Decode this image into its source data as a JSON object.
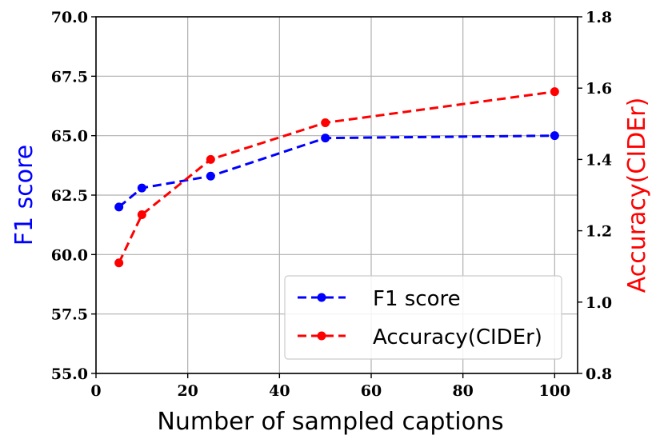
{
  "chart_data": {
    "type": "line",
    "xlabel": "Number of sampled captions",
    "ylabel_left": "F1 score",
    "ylabel_right": "Accuracy(CIDEr)",
    "xlim": [
      0,
      105
    ],
    "ylim_left": [
      55.0,
      70.0
    ],
    "ylim_right": [
      0.8,
      1.8
    ],
    "x_ticks": [
      0,
      20,
      40,
      60,
      80,
      100
    ],
    "x_tick_labels": [
      "0",
      "20",
      "40",
      "60",
      "80",
      "100"
    ],
    "y_left_ticks": [
      55.0,
      57.5,
      60.0,
      62.5,
      65.0,
      67.5,
      70.0
    ],
    "y_left_tick_labels": [
      "55.0",
      "57.5",
      "60.0",
      "62.5",
      "65.0",
      "67.5",
      "70.0"
    ],
    "y_right_ticks": [
      0.8,
      1.0,
      1.2,
      1.4,
      1.6,
      1.8
    ],
    "y_right_tick_labels": [
      "0.8",
      "1.0",
      "1.2",
      "1.4",
      "1.6",
      "1.8"
    ],
    "grid": true,
    "legend_position": "lower-right",
    "series": [
      {
        "name": "F1 score",
        "axis": "left",
        "color": "#0000ff",
        "linestyle": "dashed",
        "marker": "circle",
        "x": [
          5,
          10,
          25,
          50,
          100
        ],
        "values": [
          62.0,
          62.8,
          63.3,
          64.9,
          65.0
        ]
      },
      {
        "name": "Accuracy(CIDEr)",
        "axis": "right",
        "color": "#ff0000",
        "linestyle": "dashed",
        "marker": "circle",
        "x": [
          5,
          10,
          25,
          50,
          100
        ],
        "values": [
          1.11,
          1.245,
          1.4,
          1.503,
          1.59
        ]
      }
    ]
  }
}
